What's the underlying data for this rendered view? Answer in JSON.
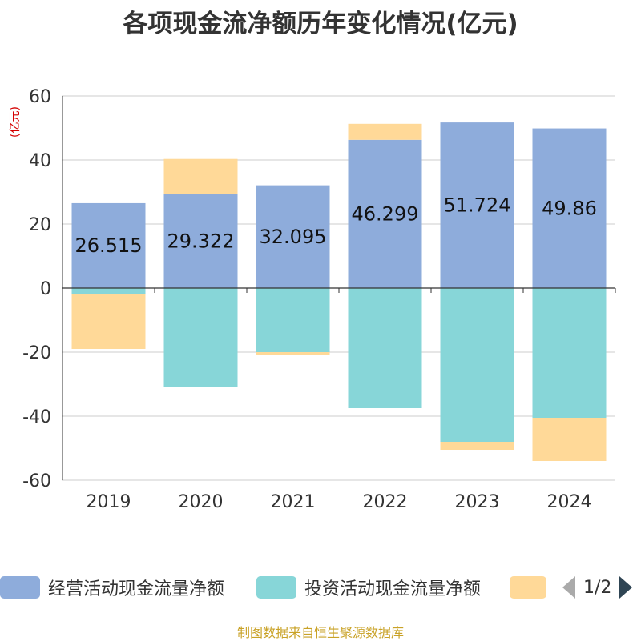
{
  "page": {
    "title": "各项现金流净额历年变化情况(亿元)",
    "unit": "(亿元)",
    "source": "制图数据来自恒生聚源数据库"
  },
  "legend": {
    "items": [
      {
        "label": "经营活动现金流量净额",
        "color": "#8eacdb"
      },
      {
        "label": "投资活动现金流量净额",
        "color": "#87d6d8"
      },
      {
        "label": "",
        "color": "#ffd998"
      }
    ],
    "page_indicator": "1/2",
    "prev_icon": "triangle-left",
    "next_icon": "triangle-right"
  },
  "chart_data": {
    "type": "bar",
    "stacked": true,
    "categories": [
      "2019",
      "2020",
      "2021",
      "2022",
      "2023",
      "2024"
    ],
    "series": [
      {
        "name": "经营活动现金流量净额",
        "color": "#8eacdb",
        "values": [
          26.515,
          29.322,
          32.095,
          46.299,
          51.724,
          49.86
        ],
        "labels": [
          "26.515",
          "29.322",
          "32.095",
          "46.299",
          "51.724",
          "49.86"
        ]
      },
      {
        "name": "投资活动现金流量净额",
        "color": "#87d6d8",
        "values": [
          -2.0,
          -31.0,
          -20.0,
          -37.5,
          -48.0,
          -40.5
        ]
      },
      {
        "name": "",
        "color": "#ffd998",
        "values": [
          -17.0,
          11.0,
          -1.0,
          5.0,
          -2.5,
          -13.5
        ]
      }
    ],
    "ylim": [
      -60,
      60
    ],
    "yticks": [
      -60,
      -40,
      -20,
      0,
      20,
      40,
      60
    ],
    "grid": true
  }
}
